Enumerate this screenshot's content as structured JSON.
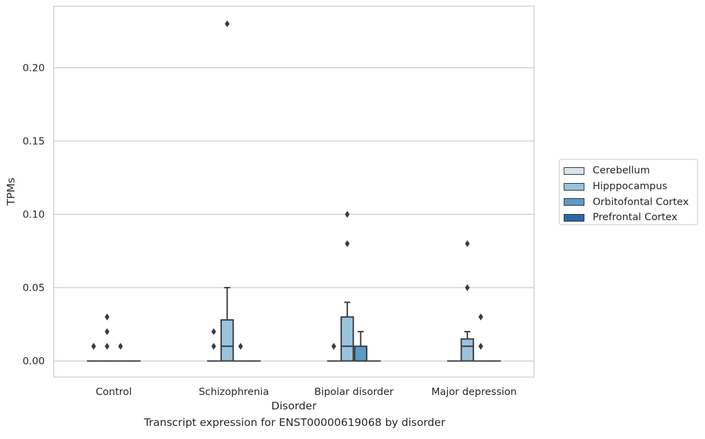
{
  "caption": "Transcript expression for ENST00000619068 by disorder",
  "chart_data": {
    "type": "box",
    "title": "",
    "xlabel": "Disorder",
    "ylabel": "TPMs",
    "categories": [
      "Control",
      "Schizophrenia",
      "Bipolar disorder",
      "Major depression"
    ],
    "yticks": [
      0.0,
      0.05,
      0.1,
      0.15,
      0.2
    ],
    "ytick_labels": [
      "0.00",
      "0.05",
      "0.10",
      "0.15",
      "0.20"
    ],
    "ylim": [
      -0.011,
      0.242
    ],
    "grid": true,
    "legend_position": "right",
    "series": [
      {
        "name": "Cerebellum",
        "color": "#d6e4f0",
        "boxes": [
          {
            "q1": 0,
            "median": 0,
            "q3": 0,
            "whislo": 0,
            "whishi": 0,
            "fliers": []
          },
          {
            "q1": 0,
            "median": 0,
            "q3": 0,
            "whislo": 0,
            "whishi": 0,
            "fliers": []
          },
          {
            "q1": 0,
            "median": 0,
            "q3": 0,
            "whislo": 0,
            "whishi": 0,
            "fliers": []
          },
          {
            "q1": 0,
            "median": 0,
            "q3": 0,
            "whislo": 0,
            "whishi": 0,
            "fliers": []
          }
        ]
      },
      {
        "name": "Hipppocampus",
        "color": "#9ac3dd",
        "boxes": [
          {
            "q1": 0,
            "median": 0,
            "q3": 0,
            "whislo": 0,
            "whishi": 0,
            "fliers": [
              0.01,
              0.02,
              0.03
            ]
          },
          {
            "q1": 0,
            "median": 0.01,
            "q3": 0.028,
            "whislo": 0,
            "whishi": 0.05,
            "fliers": [
              0.23
            ]
          },
          {
            "q1": 0,
            "median": 0.01,
            "q3": 0.03,
            "whislo": 0,
            "whishi": 0.04,
            "fliers": [
              0.08,
              0.1
            ]
          },
          {
            "q1": 0,
            "median": 0.01,
            "q3": 0.015,
            "whislo": 0,
            "whishi": 0.02,
            "fliers": [
              0.05,
              0.08
            ]
          }
        ]
      },
      {
        "name": "Orbitofontal Cortex",
        "color": "#5b9ac6",
        "boxes": [
          {
            "q1": 0,
            "median": 0,
            "q3": 0,
            "whislo": 0,
            "whishi": 0,
            "fliers": [
              0.01
            ]
          },
          {
            "q1": 0,
            "median": 0,
            "q3": 0,
            "whislo": 0,
            "whishi": 0,
            "fliers": [
              0.01
            ]
          },
          {
            "q1": 0,
            "median": 0,
            "q3": 0.01,
            "whislo": 0,
            "whishi": 0.02,
            "fliers": []
          },
          {
            "q1": 0,
            "median": 0,
            "q3": 0,
            "whislo": 0,
            "whishi": 0,
            "fliers": [
              0.03,
              0.01
            ]
          }
        ]
      },
      {
        "name": "Prefrontal Cortex",
        "color": "#2a6aa6",
        "boxes": [
          {
            "q1": 0,
            "median": 0,
            "q3": 0,
            "whislo": 0,
            "whishi": 0,
            "fliers": []
          },
          {
            "q1": 0,
            "median": 0,
            "q3": 0,
            "whislo": 0,
            "whishi": 0,
            "fliers": []
          },
          {
            "q1": 0,
            "median": 0,
            "q3": 0,
            "whislo": 0,
            "whishi": 0,
            "fliers": []
          },
          {
            "q1": 0,
            "median": 0,
            "q3": 0,
            "whislo": 0,
            "whishi": 0,
            "fliers": []
          }
        ]
      }
    ],
    "extra_fliers": [
      {
        "category": 0,
        "offset": -1.5,
        "values": [
          0.01
        ]
      },
      {
        "category": 1,
        "offset": -1.5,
        "values": [
          0.01,
          0.02
        ]
      },
      {
        "category": 2,
        "offset": -1.5,
        "values": [
          0.01
        ]
      }
    ]
  }
}
